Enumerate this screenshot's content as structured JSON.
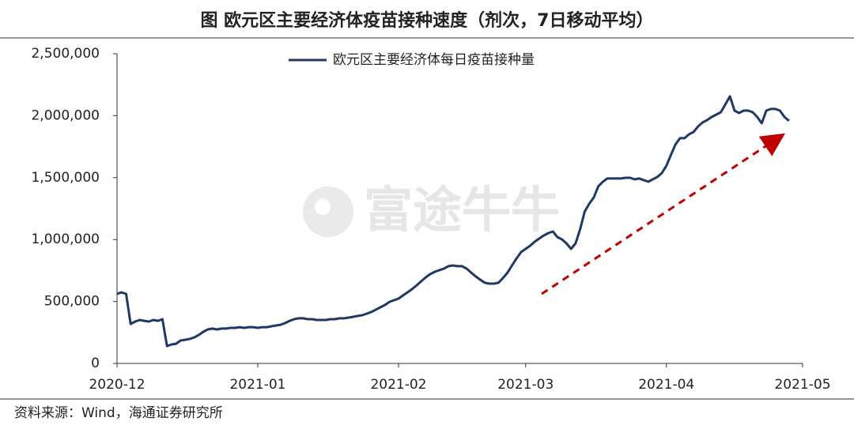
{
  "chart_data": {
    "type": "line",
    "title": "图  欧元区主要经济体疫苗接种速度（剂次，7日移动平均）",
    "source": "资料来源：Wind，海通证券研究所",
    "watermark": "富途牛牛",
    "legend": "top",
    "categories": [
      "2020-12",
      null,
      null,
      null,
      null,
      null,
      null,
      null,
      null,
      null,
      null,
      null,
      null,
      null,
      null,
      null,
      null,
      null,
      null,
      null,
      null,
      null,
      null,
      null,
      null,
      null,
      null,
      null,
      null,
      null,
      null,
      "2021-01",
      null,
      null,
      null,
      null,
      null,
      null,
      null,
      null,
      null,
      null,
      null,
      null,
      null,
      null,
      null,
      null,
      null,
      null,
      null,
      null,
      null,
      null,
      null,
      null,
      null,
      null,
      null,
      null,
      null,
      null,
      "2021-02",
      null,
      null,
      null,
      null,
      null,
      null,
      null,
      null,
      null,
      null,
      null,
      null,
      null,
      null,
      null,
      null,
      null,
      null,
      null,
      null,
      null,
      null,
      null,
      null,
      null,
      null,
      null,
      "2021-03",
      null,
      null,
      null,
      null,
      null,
      null,
      null,
      null,
      null,
      null,
      null,
      null,
      null,
      null,
      null,
      null,
      null,
      null,
      null,
      null,
      null,
      null,
      null,
      null,
      null,
      null,
      null,
      null,
      null,
      null,
      "2021-04",
      null,
      null,
      null,
      null,
      null,
      null,
      null,
      null,
      null,
      null,
      null,
      null,
      null,
      null,
      null,
      null,
      null,
      null,
      null,
      null,
      null,
      null,
      null,
      null,
      null,
      null,
      null,
      null,
      null,
      "2021-05"
    ],
    "series": [
      {
        "name": "欧元区主要经济体每日疫苗接种量",
        "color": "#1f3864",
        "values": [
          561000,
          574000,
          561000,
          319000,
          338000,
          351000,
          344000,
          338000,
          351000,
          344000,
          357000,
          140000,
          153000,
          159000,
          185000,
          191000,
          198000,
          210000,
          230000,
          255000,
          274000,
          281000,
          274000,
          281000,
          281000,
          287000,
          287000,
          293000,
          287000,
          293000,
          293000,
          287000,
          293000,
          293000,
          300000,
          306000,
          312000,
          325000,
          344000,
          357000,
          364000,
          364000,
          357000,
          357000,
          351000,
          351000,
          351000,
          357000,
          357000,
          364000,
          364000,
          370000,
          376000,
          383000,
          389000,
          402000,
          415000,
          434000,
          453000,
          472000,
          497000,
          510000,
          523000,
          549000,
          574000,
          600000,
          631000,
          663000,
          695000,
          721000,
          740000,
          753000,
          765000,
          785000,
          791000,
          785000,
          785000,
          765000,
          733000,
          702000,
          676000,
          651000,
          644000,
          644000,
          651000,
          689000,
          733000,
          791000,
          848000,
          899000,
          925000,
          950000,
          982000,
          1008000,
          1033000,
          1052000,
          1065000,
          1020000,
          1001000,
          969000,
          925000,
          969000,
          1084000,
          1225000,
          1288000,
          1339000,
          1429000,
          1467000,
          1493000,
          1493000,
          1493000,
          1493000,
          1499000,
          1499000,
          1486000,
          1493000,
          1480000,
          1467000,
          1486000,
          1505000,
          1537000,
          1595000,
          1684000,
          1767000,
          1818000,
          1818000,
          1850000,
          1869000,
          1914000,
          1946000,
          1965000,
          1990000,
          2009000,
          2028000,
          2092000,
          2156000,
          2041000,
          2022000,
          2041000,
          2041000,
          2028000,
          1990000,
          1939000,
          2041000,
          2054000,
          2054000,
          2041000,
          1990000,
          1958000,
          null,
          null,
          null
        ]
      }
    ],
    "ylim": [
      0,
      2500000
    ],
    "yticks": [
      0,
      {
        "value": 500000,
        "label": "500,000"
      },
      {
        "value": 1000000,
        "label": "1,000,000"
      },
      {
        "value": 1500000,
        "label": "1,500,000"
      },
      {
        "value": 2000000,
        "label": "2,000,000"
      },
      {
        "value": 2500000,
        "label": "2,500,000"
      }
    ]
  }
}
